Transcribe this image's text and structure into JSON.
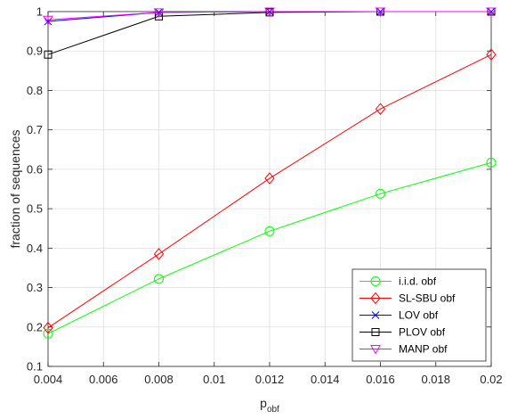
{
  "chart_data": {
    "type": "line",
    "xlabel": "p",
    "xlabel_subscript": "obf",
    "ylabel": "fraction of sequences",
    "xlim": [
      0.004,
      0.02
    ],
    "ylim": [
      0.1,
      1
    ],
    "grid": true,
    "legend_position": "bottom-right",
    "x_ticks": [
      "0.004",
      "0.006",
      "0.008",
      "0.01",
      "0.012",
      "0.014",
      "0.016",
      "0.018",
      "0.02"
    ],
    "y_ticks": [
      "0.1",
      "0.2",
      "0.3",
      "0.4",
      "0.5",
      "0.6",
      "0.7",
      "0.8",
      "0.9",
      "1"
    ],
    "x": [
      0.004,
      0.008,
      0.012,
      0.016,
      0.02
    ],
    "series": [
      {
        "name": "i.i.d. obf",
        "color": "#00ff00",
        "marker": "circle",
        "values": [
          0.183,
          0.322,
          0.443,
          0.538,
          0.617
        ]
      },
      {
        "name": "SL-SBU obf",
        "color": "#ff0000",
        "marker": "diamond",
        "values": [
          0.198,
          0.385,
          0.577,
          0.753,
          0.891
        ]
      },
      {
        "name": "LOV obf",
        "color": "#0000ff",
        "marker": "x",
        "values": [
          0.975,
          0.998,
          1.0,
          1.0,
          1.0
        ]
      },
      {
        "name": "PLOV obf",
        "color": "#000000",
        "marker": "square",
        "values": [
          0.891,
          0.988,
          0.998,
          1.0,
          1.0
        ]
      },
      {
        "name": "MANP obf",
        "color": "#ff00ff",
        "marker": "triangle-down",
        "values": [
          0.979,
          0.998,
          1.0,
          1.0,
          1.0
        ]
      }
    ]
  }
}
